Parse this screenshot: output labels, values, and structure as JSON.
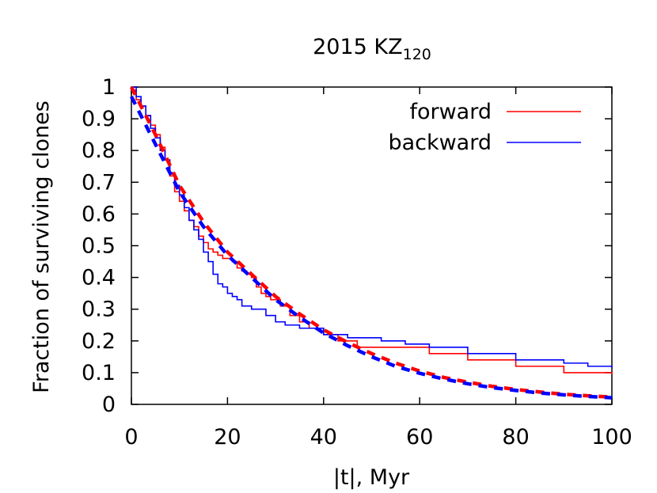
{
  "chart_data": {
    "type": "line",
    "title": "2015 KZ",
    "title_subscript": "120",
    "xlabel": "|t|, Myr",
    "ylabel": "Fraction of surviving clones",
    "xlim": [
      0,
      100
    ],
    "ylim": [
      0,
      1
    ],
    "x_ticks": [
      0,
      20,
      40,
      60,
      80,
      100
    ],
    "y_ticks": [
      0,
      0.1,
      0.2,
      0.3,
      0.4,
      0.5,
      0.6,
      0.7,
      0.8,
      0.9,
      1
    ],
    "grid": false,
    "legend_position": "top-right",
    "series": [
      {
        "name": "forward",
        "color": "#ff0000",
        "style": "step",
        "x": [
          0,
          1,
          2,
          3,
          4,
          5,
          6,
          7,
          8,
          9,
          10,
          11,
          12,
          13,
          14,
          15,
          16,
          17,
          18,
          19,
          20,
          21,
          22,
          23,
          24,
          25,
          26,
          27,
          28,
          29,
          30,
          31,
          33,
          35,
          37,
          40,
          43,
          47,
          55,
          62,
          70,
          80,
          90,
          100
        ],
        "y": [
          0.99,
          0.96,
          0.94,
          0.91,
          0.88,
          0.85,
          0.81,
          0.77,
          0.72,
          0.67,
          0.64,
          0.61,
          0.58,
          0.56,
          0.53,
          0.51,
          0.49,
          0.48,
          0.47,
          0.46,
          0.46,
          0.45,
          0.43,
          0.42,
          0.41,
          0.4,
          0.37,
          0.35,
          0.34,
          0.33,
          0.33,
          0.31,
          0.28,
          0.26,
          0.24,
          0.22,
          0.2,
          0.18,
          0.18,
          0.16,
          0.14,
          0.12,
          0.1,
          0.095
        ]
      },
      {
        "name": "backward",
        "color": "#0000ff",
        "style": "step",
        "x": [
          0,
          1,
          2,
          3,
          4,
          5,
          6,
          7,
          8,
          9,
          10,
          11,
          12,
          13,
          14,
          15,
          16,
          17,
          18,
          19,
          20,
          21,
          22,
          23,
          25,
          28,
          30,
          32,
          35,
          40,
          45,
          52,
          57,
          62,
          70,
          80,
          90,
          95,
          100
        ],
        "y": [
          1.0,
          0.97,
          0.94,
          0.91,
          0.87,
          0.84,
          0.8,
          0.77,
          0.73,
          0.69,
          0.66,
          0.62,
          0.58,
          0.55,
          0.52,
          0.48,
          0.45,
          0.41,
          0.38,
          0.37,
          0.35,
          0.34,
          0.33,
          0.31,
          0.3,
          0.28,
          0.26,
          0.25,
          0.24,
          0.22,
          0.21,
          0.2,
          0.19,
          0.18,
          0.16,
          0.14,
          0.13,
          0.12,
          0.115
        ]
      },
      {
        "color": "#ff0000",
        "style": "dashed",
        "x": [
          0,
          5,
          10,
          15,
          20,
          25,
          30,
          35,
          40,
          45,
          50,
          55,
          60,
          65,
          70,
          75,
          80,
          85,
          90,
          95,
          100
        ],
        "y": [
          1.0,
          0.85,
          0.69,
          0.575,
          0.48,
          0.41,
          0.34,
          0.285,
          0.235,
          0.195,
          0.16,
          0.13,
          0.105,
          0.085,
          0.07,
          0.057,
          0.047,
          0.039,
          0.032,
          0.027,
          0.023
        ]
      },
      {
        "color": "#0000ff",
        "style": "dashed",
        "x": [
          0,
          5,
          10,
          15,
          20,
          25,
          30,
          35,
          40,
          45,
          50,
          55,
          60,
          65,
          70,
          75,
          80,
          85,
          90,
          95,
          100
        ],
        "y": [
          0.97,
          0.82,
          0.67,
          0.56,
          0.47,
          0.4,
          0.33,
          0.275,
          0.225,
          0.185,
          0.15,
          0.12,
          0.098,
          0.08,
          0.065,
          0.053,
          0.044,
          0.036,
          0.03,
          0.025,
          0.021
        ]
      }
    ]
  }
}
